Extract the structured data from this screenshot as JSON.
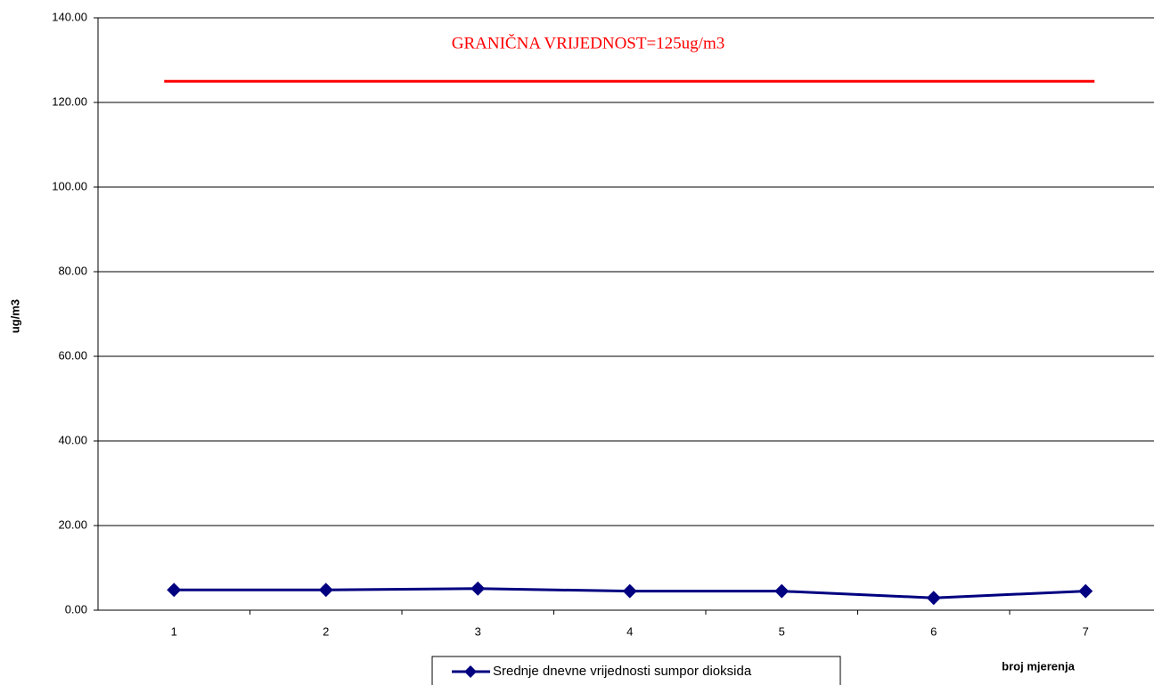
{
  "chart_data": {
    "type": "line",
    "annotation": "GRANIČNA VRIJEDNOST=125ug/m3",
    "y_label": "ug/m3",
    "x_label": "broj mjerenja",
    "categories": [
      "1",
      "2",
      "3",
      "4",
      "5",
      "6",
      "7"
    ],
    "series": [
      {
        "name": "Srednje dnevne vrijednosti sumpor dioksida",
        "color": "#000080",
        "values": [
          4.8,
          4.8,
          5.1,
          4.5,
          4.5,
          2.9,
          4.5
        ]
      }
    ],
    "limit_line": {
      "value": 125,
      "color": "#ff0000"
    },
    "ylim": [
      0,
      140
    ],
    "yticks": [
      {
        "value": 0,
        "label": "0.00"
      },
      {
        "value": 20,
        "label": "20.00"
      },
      {
        "value": 40,
        "label": "40.00"
      },
      {
        "value": 60,
        "label": "60.00"
      },
      {
        "value": 80,
        "label": "80.00"
      },
      {
        "value": 100,
        "label": "100.00"
      },
      {
        "value": 120,
        "label": "120.00"
      },
      {
        "value": 140,
        "label": "140.00"
      }
    ],
    "grid": true
  }
}
